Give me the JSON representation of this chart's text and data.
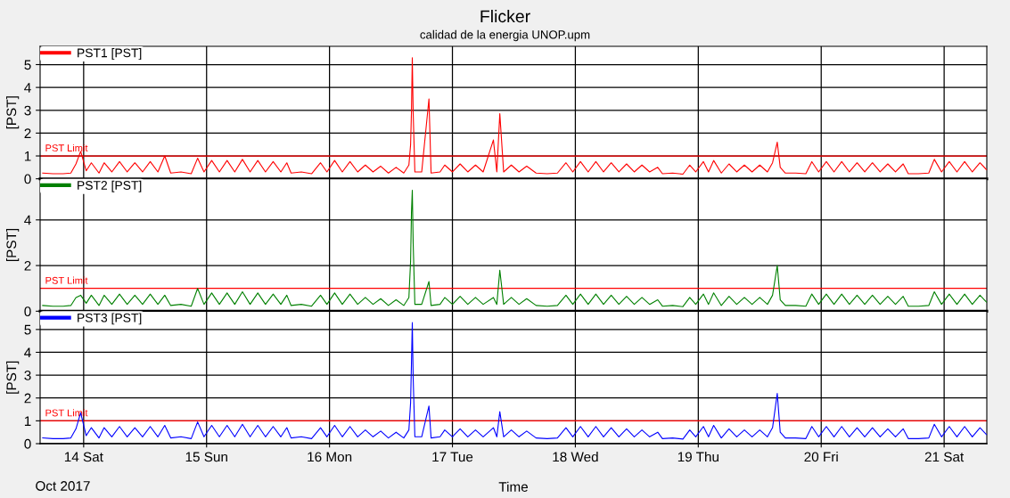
{
  "chart_data": [
    {
      "type": "line",
      "title": "Flicker",
      "subtitle": "calidad de la energia UNOP.upm",
      "ylabel": "[PST]",
      "legend": "top left",
      "grid": true,
      "tick_labels": "y",
      "xlim": [
        "2017-10-13T15:30",
        "2017-10-21T08:20"
      ],
      "xticks": [
        {
          "value": "2017-10-14",
          "label": null
        },
        {
          "value": "2017-10-15",
          "label": null
        },
        {
          "value": "2017-10-16",
          "label": null
        },
        {
          "value": "2017-10-17",
          "label": null
        },
        {
          "value": "2017-10-18",
          "label": null
        },
        {
          "value": "2017-10-19",
          "label": null
        },
        {
          "value": "2017-10-20",
          "label": null
        },
        {
          "value": "2017-10-21",
          "label": null
        }
      ],
      "ylim": [
        0,
        5.8
      ],
      "yticks": [
        0,
        1,
        2,
        3,
        4,
        5
      ],
      "ref_lines": [
        {
          "axis": "y",
          "value": 1,
          "label": "PST Limit",
          "color": "#ff0000"
        }
      ],
      "x": [
        "2017-10-13T16:00",
        "2017-10-13T18:00",
        "2017-10-13T20:00",
        "2017-10-13T21:30",
        "2017-10-13T22:30",
        "2017-10-13T23:25",
        "2017-10-14T00:30",
        "2017-10-14T01:30",
        "2017-10-14T03:00",
        "2017-10-14T04:00",
        "2017-10-14T05:30",
        "2017-10-14T07:00",
        "2017-10-14T08:30",
        "2017-10-14T10:00",
        "2017-10-14T11:30",
        "2017-10-14T13:00",
        "2017-10-14T14:30",
        "2017-10-14T15:50",
        "2017-10-14T17:00",
        "2017-10-14T19:00",
        "2017-10-14T21:00",
        "2017-10-14T22:15",
        "2017-10-14T23:30",
        "2017-10-15T01:00",
        "2017-10-15T02:30",
        "2017-10-15T04:00",
        "2017-10-15T05:30",
        "2017-10-15T07:00",
        "2017-10-15T08:30",
        "2017-10-15T10:00",
        "2017-10-15T11:30",
        "2017-10-15T13:00",
        "2017-10-15T14:30",
        "2017-10-15T15:40",
        "2017-10-15T16:30",
        "2017-10-15T18:30",
        "2017-10-15T20:30",
        "2017-10-15T22:15",
        "2017-10-15T23:30",
        "2017-10-16T01:00",
        "2017-10-16T02:30",
        "2017-10-16T04:00",
        "2017-10-16T05:30",
        "2017-10-16T07:00",
        "2017-10-16T08:30",
        "2017-10-16T10:00",
        "2017-10-16T11:30",
        "2017-10-16T13:00",
        "2017-10-16T14:30",
        "2017-10-16T15:30",
        "2017-10-16T15:50",
        "2017-10-16T16:00",
        "2017-10-16T16:10",
        "2017-10-16T16:20",
        "2017-10-16T16:40",
        "2017-10-16T18:00",
        "2017-10-16T19:25",
        "2017-10-16T19:50",
        "2017-10-16T21:35",
        "2017-10-16T22:30",
        "2017-10-17T00:00",
        "2017-10-17T01:30",
        "2017-10-17T03:00",
        "2017-10-17T04:30",
        "2017-10-17T06:00",
        "2017-10-17T08:00",
        "2017-10-17T08:40",
        "2017-10-17T09:15",
        "2017-10-17T10:00",
        "2017-10-17T11:30",
        "2017-10-17T13:00",
        "2017-10-17T14:30",
        "2017-10-17T16:20",
        "2017-10-17T18:30",
        "2017-10-17T20:30",
        "2017-10-17T22:10",
        "2017-10-17T23:30",
        "2017-10-18T01:00",
        "2017-10-18T02:30",
        "2017-10-18T04:00",
        "2017-10-18T05:30",
        "2017-10-18T07:00",
        "2017-10-18T08:30",
        "2017-10-18T10:00",
        "2017-10-18T11:30",
        "2017-10-18T13:00",
        "2017-10-18T14:30",
        "2017-10-18T16:05",
        "2017-10-18T17:00",
        "2017-10-18T19:00",
        "2017-10-18T21:00",
        "2017-10-18T22:20",
        "2017-10-18T23:30",
        "2017-10-19T01:00",
        "2017-10-19T02:00",
        "2017-10-19T03:00",
        "2017-10-19T04:30",
        "2017-10-19T06:00",
        "2017-10-19T07:30",
        "2017-10-19T09:00",
        "2017-10-19T10:30",
        "2017-10-19T12:00",
        "2017-10-19T13:30",
        "2017-10-19T14:30",
        "2017-10-19T15:25",
        "2017-10-19T16:00",
        "2017-10-19T17:00",
        "2017-10-19T19:00",
        "2017-10-19T21:00",
        "2017-10-19T22:10",
        "2017-10-19T23:30",
        "2017-10-20T01:00",
        "2017-10-20T02:30",
        "2017-10-20T04:00",
        "2017-10-20T05:30",
        "2017-10-20T07:00",
        "2017-10-20T08:30",
        "2017-10-20T10:00",
        "2017-10-20T11:30",
        "2017-10-20T13:00",
        "2017-10-20T14:30",
        "2017-10-20T16:00",
        "2017-10-20T17:00",
        "2017-10-20T19:00",
        "2017-10-20T21:00",
        "2017-10-20T22:05",
        "2017-10-20T23:30",
        "2017-10-21T01:00",
        "2017-10-21T02:30",
        "2017-10-21T04:00",
        "2017-10-21T05:30",
        "2017-10-21T07:00",
        "2017-10-21T08:15"
      ],
      "series": [
        {
          "name": "PST1 [PST]",
          "color": "#ff0000",
          "values": [
            0.25,
            0.22,
            0.22,
            0.25,
            0.65,
            1.2,
            0.35,
            0.7,
            0.25,
            0.7,
            0.3,
            0.75,
            0.3,
            0.7,
            0.3,
            0.75,
            0.3,
            1.0,
            0.25,
            0.3,
            0.22,
            0.9,
            0.3,
            0.8,
            0.3,
            0.8,
            0.3,
            0.85,
            0.3,
            0.8,
            0.3,
            0.75,
            0.3,
            0.7,
            0.25,
            0.3,
            0.22,
            0.7,
            0.3,
            0.8,
            0.3,
            0.75,
            0.3,
            0.6,
            0.3,
            0.55,
            0.25,
            0.5,
            0.25,
            0.6,
            1.5,
            2.9,
            5.3,
            2.9,
            0.3,
            0.3,
            3.5,
            0.25,
            0.3,
            0.6,
            0.3,
            0.65,
            0.3,
            0.6,
            0.3,
            1.7,
            0.3,
            2.85,
            0.3,
            0.6,
            0.3,
            0.55,
            0.25,
            0.22,
            0.25,
            0.7,
            0.3,
            0.75,
            0.3,
            0.75,
            0.3,
            0.7,
            0.3,
            0.65,
            0.3,
            0.6,
            0.3,
            0.5,
            0.22,
            0.25,
            0.2,
            0.6,
            0.3,
            0.75,
            0.3,
            0.8,
            0.25,
            0.65,
            0.3,
            0.6,
            0.3,
            0.6,
            0.3,
            0.7,
            1.6,
            0.5,
            0.25,
            0.25,
            0.22,
            0.75,
            0.3,
            0.75,
            0.3,
            0.75,
            0.3,
            0.7,
            0.3,
            0.7,
            0.3,
            0.65,
            0.3,
            0.65,
            0.22,
            0.22,
            0.25,
            0.85,
            0.3,
            0.75,
            0.3,
            0.75,
            0.3,
            0.7,
            0.4
          ]
        }
      ]
    },
    {
      "type": "line",
      "ylabel": "[PST]",
      "legend": "top left",
      "grid": true,
      "tick_labels": "y",
      "xlim": [
        "2017-10-13T15:30",
        "2017-10-21T08:20"
      ],
      "xticks": [
        {
          "value": "2017-10-14",
          "label": null
        },
        {
          "value": "2017-10-15",
          "label": null
        },
        {
          "value": "2017-10-16",
          "label": null
        },
        {
          "value": "2017-10-17",
          "label": null
        },
        {
          "value": "2017-10-18",
          "label": null
        },
        {
          "value": "2017-10-19",
          "label": null
        },
        {
          "value": "2017-10-20",
          "label": null
        },
        {
          "value": "2017-10-21",
          "label": null
        }
      ],
      "ylim": [
        0,
        5.8
      ],
      "yticks": [
        0,
        2,
        4
      ],
      "ref_lines": [
        {
          "axis": "y",
          "value": 1,
          "label": "PST Limit",
          "color": "#ff0000"
        }
      ],
      "x": [
        "2017-10-13T16:00",
        "2017-10-13T18:00",
        "2017-10-13T20:00",
        "2017-10-13T21:30",
        "2017-10-13T22:30",
        "2017-10-13T23:25",
        "2017-10-14T00:30",
        "2017-10-14T01:30",
        "2017-10-14T03:00",
        "2017-10-14T04:00",
        "2017-10-14T05:30",
        "2017-10-14T07:00",
        "2017-10-14T08:30",
        "2017-10-14T10:00",
        "2017-10-14T11:30",
        "2017-10-14T13:00",
        "2017-10-14T14:30",
        "2017-10-14T15:50",
        "2017-10-14T17:00",
        "2017-10-14T19:00",
        "2017-10-14T21:00",
        "2017-10-14T22:15",
        "2017-10-14T23:30",
        "2017-10-15T01:00",
        "2017-10-15T02:30",
        "2017-10-15T04:00",
        "2017-10-15T05:30",
        "2017-10-15T07:00",
        "2017-10-15T08:30",
        "2017-10-15T10:00",
        "2017-10-15T11:30",
        "2017-10-15T13:00",
        "2017-10-15T14:30",
        "2017-10-15T15:40",
        "2017-10-15T16:30",
        "2017-10-15T18:30",
        "2017-10-15T20:30",
        "2017-10-15T22:15",
        "2017-10-15T23:30",
        "2017-10-16T01:00",
        "2017-10-16T02:30",
        "2017-10-16T04:00",
        "2017-10-16T05:30",
        "2017-10-16T07:00",
        "2017-10-16T08:30",
        "2017-10-16T10:00",
        "2017-10-16T11:30",
        "2017-10-16T13:00",
        "2017-10-16T14:30",
        "2017-10-16T15:30",
        "2017-10-16T15:50",
        "2017-10-16T16:00",
        "2017-10-16T16:10",
        "2017-10-16T16:20",
        "2017-10-16T16:40",
        "2017-10-16T18:00",
        "2017-10-16T19:25",
        "2017-10-16T19:50",
        "2017-10-16T21:35",
        "2017-10-16T22:30",
        "2017-10-17T00:00",
        "2017-10-17T01:30",
        "2017-10-17T03:00",
        "2017-10-17T04:30",
        "2017-10-17T06:00",
        "2017-10-17T08:00",
        "2017-10-17T08:40",
        "2017-10-17T09:15",
        "2017-10-17T10:00",
        "2017-10-17T11:30",
        "2017-10-17T13:00",
        "2017-10-17T14:30",
        "2017-10-17T16:20",
        "2017-10-17T18:30",
        "2017-10-17T20:30",
        "2017-10-17T22:10",
        "2017-10-17T23:30",
        "2017-10-18T01:00",
        "2017-10-18T02:30",
        "2017-10-18T04:00",
        "2017-10-18T05:30",
        "2017-10-18T07:00",
        "2017-10-18T08:30",
        "2017-10-18T10:00",
        "2017-10-18T11:30",
        "2017-10-18T13:00",
        "2017-10-18T14:30",
        "2017-10-18T16:05",
        "2017-10-18T17:00",
        "2017-10-18T19:00",
        "2017-10-18T21:00",
        "2017-10-18T22:20",
        "2017-10-18T23:30",
        "2017-10-19T01:00",
        "2017-10-19T02:00",
        "2017-10-19T03:00",
        "2017-10-19T04:30",
        "2017-10-19T06:00",
        "2017-10-19T07:30",
        "2017-10-19T09:00",
        "2017-10-19T10:30",
        "2017-10-19T12:00",
        "2017-10-19T13:30",
        "2017-10-19T14:30",
        "2017-10-19T15:25",
        "2017-10-19T16:00",
        "2017-10-19T17:00",
        "2017-10-19T19:00",
        "2017-10-19T21:00",
        "2017-10-19T22:10",
        "2017-10-19T23:30",
        "2017-10-20T01:00",
        "2017-10-20T02:30",
        "2017-10-20T04:00",
        "2017-10-20T05:30",
        "2017-10-20T07:00",
        "2017-10-20T08:30",
        "2017-10-20T10:00",
        "2017-10-20T11:30",
        "2017-10-20T13:00",
        "2017-10-20T14:30",
        "2017-10-20T16:00",
        "2017-10-20T17:00",
        "2017-10-20T19:00",
        "2017-10-20T21:00",
        "2017-10-20T22:05",
        "2017-10-20T23:30",
        "2017-10-21T01:00",
        "2017-10-21T02:30",
        "2017-10-21T04:00",
        "2017-10-21T05:30",
        "2017-10-21T07:00",
        "2017-10-21T08:15"
      ],
      "series": [
        {
          "name": "PST2 [PST]",
          "color": "#008000",
          "values": [
            0.25,
            0.22,
            0.22,
            0.25,
            0.6,
            0.7,
            0.35,
            0.7,
            0.25,
            0.7,
            0.3,
            0.75,
            0.3,
            0.7,
            0.3,
            0.75,
            0.3,
            0.7,
            0.25,
            0.3,
            0.22,
            1.0,
            0.3,
            0.8,
            0.3,
            0.8,
            0.3,
            0.85,
            0.3,
            0.8,
            0.3,
            0.75,
            0.3,
            0.7,
            0.25,
            0.3,
            0.22,
            0.7,
            0.3,
            0.8,
            0.3,
            0.75,
            0.3,
            0.6,
            0.3,
            0.55,
            0.25,
            0.5,
            0.25,
            0.6,
            2.2,
            4.3,
            5.3,
            3.0,
            0.3,
            0.3,
            1.3,
            0.25,
            0.3,
            0.6,
            0.3,
            0.65,
            0.3,
            0.6,
            0.3,
            0.6,
            0.3,
            1.8,
            0.3,
            0.6,
            0.3,
            0.55,
            0.25,
            0.22,
            0.25,
            0.7,
            0.3,
            0.75,
            0.3,
            0.75,
            0.3,
            0.7,
            0.3,
            0.65,
            0.3,
            0.6,
            0.3,
            0.5,
            0.22,
            0.25,
            0.2,
            0.6,
            0.3,
            0.75,
            0.3,
            0.8,
            0.25,
            0.65,
            0.3,
            0.6,
            0.3,
            0.6,
            0.3,
            0.7,
            2.0,
            0.5,
            0.25,
            0.25,
            0.22,
            0.75,
            0.3,
            0.75,
            0.3,
            0.75,
            0.3,
            0.7,
            0.3,
            0.7,
            0.3,
            0.65,
            0.3,
            0.65,
            0.22,
            0.22,
            0.25,
            0.85,
            0.3,
            0.75,
            0.3,
            0.75,
            0.3,
            0.7,
            0.4
          ]
        }
      ]
    },
    {
      "type": "line",
      "xlabel": "Time",
      "ylabel": "[PST]",
      "legend": "top left",
      "grid": true,
      "annotations": [
        "Oct 2017"
      ],
      "xlim": [
        "2017-10-13T15:30",
        "2017-10-21T08:20"
      ],
      "xticks": [
        {
          "value": "2017-10-14",
          "label": "14 Sat"
        },
        {
          "value": "2017-10-15",
          "label": "15 Sun"
        },
        {
          "value": "2017-10-16",
          "label": "16 Mon"
        },
        {
          "value": "2017-10-17",
          "label": "17 Tue"
        },
        {
          "value": "2017-10-18",
          "label": "18 Wed"
        },
        {
          "value": "2017-10-19",
          "label": "19 Thu"
        },
        {
          "value": "2017-10-20",
          "label": "20 Fri"
        },
        {
          "value": "2017-10-21",
          "label": "21 Sat"
        }
      ],
      "ylim": [
        0,
        5.8
      ],
      "yticks": [
        0,
        1,
        2,
        3,
        4,
        5
      ],
      "ref_lines": [
        {
          "axis": "y",
          "value": 1,
          "label": "PST Limit",
          "color": "#ff0000"
        }
      ],
      "x": [
        "2017-10-13T16:00",
        "2017-10-13T18:00",
        "2017-10-13T20:00",
        "2017-10-13T21:30",
        "2017-10-13T22:30",
        "2017-10-13T23:25",
        "2017-10-14T00:30",
        "2017-10-14T01:30",
        "2017-10-14T03:00",
        "2017-10-14T04:00",
        "2017-10-14T05:30",
        "2017-10-14T07:00",
        "2017-10-14T08:30",
        "2017-10-14T10:00",
        "2017-10-14T11:30",
        "2017-10-14T13:00",
        "2017-10-14T14:30",
        "2017-10-14T15:50",
        "2017-10-14T17:00",
        "2017-10-14T19:00",
        "2017-10-14T21:00",
        "2017-10-14T22:15",
        "2017-10-14T23:30",
        "2017-10-15T01:00",
        "2017-10-15T02:30",
        "2017-10-15T04:00",
        "2017-10-15T05:30",
        "2017-10-15T07:00",
        "2017-10-15T08:30",
        "2017-10-15T10:00",
        "2017-10-15T11:30",
        "2017-10-15T13:00",
        "2017-10-15T14:30",
        "2017-10-15T15:40",
        "2017-10-15T16:30",
        "2017-10-15T18:30",
        "2017-10-15T20:30",
        "2017-10-15T22:15",
        "2017-10-15T23:30",
        "2017-10-16T01:00",
        "2017-10-16T02:30",
        "2017-10-16T04:00",
        "2017-10-16T05:30",
        "2017-10-16T07:00",
        "2017-10-16T08:30",
        "2017-10-16T10:00",
        "2017-10-16T11:30",
        "2017-10-16T13:00",
        "2017-10-16T14:30",
        "2017-10-16T15:30",
        "2017-10-16T15:50",
        "2017-10-16T16:00",
        "2017-10-16T16:10",
        "2017-10-16T16:20",
        "2017-10-16T16:40",
        "2017-10-16T18:00",
        "2017-10-16T19:25",
        "2017-10-16T19:50",
        "2017-10-16T21:35",
        "2017-10-16T22:30",
        "2017-10-17T00:00",
        "2017-10-17T01:30",
        "2017-10-17T03:00",
        "2017-10-17T04:30",
        "2017-10-17T06:00",
        "2017-10-17T08:00",
        "2017-10-17T08:40",
        "2017-10-17T09:15",
        "2017-10-17T10:00",
        "2017-10-17T11:30",
        "2017-10-17T13:00",
        "2017-10-17T14:30",
        "2017-10-17T16:20",
        "2017-10-17T18:30",
        "2017-10-17T20:30",
        "2017-10-17T22:10",
        "2017-10-17T23:30",
        "2017-10-18T01:00",
        "2017-10-18T02:30",
        "2017-10-18T04:00",
        "2017-10-18T05:30",
        "2017-10-18T07:00",
        "2017-10-18T08:30",
        "2017-10-18T10:00",
        "2017-10-18T11:30",
        "2017-10-18T13:00",
        "2017-10-18T14:30",
        "2017-10-18T16:05",
        "2017-10-18T17:00",
        "2017-10-18T19:00",
        "2017-10-18T21:00",
        "2017-10-18T22:20",
        "2017-10-18T23:30",
        "2017-10-19T01:00",
        "2017-10-19T02:00",
        "2017-10-19T03:00",
        "2017-10-19T04:30",
        "2017-10-19T06:00",
        "2017-10-19T07:30",
        "2017-10-19T09:00",
        "2017-10-19T10:30",
        "2017-10-19T12:00",
        "2017-10-19T13:30",
        "2017-10-19T14:30",
        "2017-10-19T15:25",
        "2017-10-19T16:00",
        "2017-10-19T17:00",
        "2017-10-19T19:00",
        "2017-10-19T21:00",
        "2017-10-19T22:10",
        "2017-10-19T23:30",
        "2017-10-20T01:00",
        "2017-10-20T02:30",
        "2017-10-20T04:00",
        "2017-10-20T05:30",
        "2017-10-20T07:00",
        "2017-10-20T08:30",
        "2017-10-20T10:00",
        "2017-10-20T11:30",
        "2017-10-20T13:00",
        "2017-10-20T14:30",
        "2017-10-20T16:00",
        "2017-10-20T17:00",
        "2017-10-20T19:00",
        "2017-10-20T21:00",
        "2017-10-20T22:05",
        "2017-10-20T23:30",
        "2017-10-21T01:00",
        "2017-10-21T02:30",
        "2017-10-21T04:00",
        "2017-10-21T05:30",
        "2017-10-21T07:00",
        "2017-10-21T08:15"
      ],
      "series": [
        {
          "name": "PST3 [PST]",
          "color": "#0000ff",
          "values": [
            0.25,
            0.22,
            0.22,
            0.25,
            0.65,
            1.35,
            0.35,
            0.7,
            0.25,
            0.7,
            0.3,
            0.75,
            0.3,
            0.7,
            0.3,
            0.75,
            0.3,
            0.8,
            0.25,
            0.3,
            0.22,
            0.95,
            0.3,
            0.8,
            0.3,
            0.8,
            0.3,
            0.85,
            0.3,
            0.8,
            0.3,
            0.75,
            0.3,
            0.7,
            0.25,
            0.3,
            0.22,
            0.7,
            0.3,
            0.8,
            0.3,
            0.75,
            0.3,
            0.6,
            0.3,
            0.55,
            0.25,
            0.5,
            0.25,
            0.6,
            1.8,
            3.5,
            5.3,
            2.9,
            0.3,
            0.3,
            1.65,
            0.25,
            0.3,
            0.6,
            0.3,
            0.65,
            0.3,
            0.6,
            0.3,
            0.7,
            0.3,
            1.4,
            0.3,
            0.6,
            0.3,
            0.55,
            0.25,
            0.22,
            0.25,
            0.7,
            0.3,
            0.75,
            0.3,
            0.75,
            0.3,
            0.7,
            0.3,
            0.65,
            0.3,
            0.6,
            0.3,
            0.5,
            0.22,
            0.25,
            0.2,
            0.6,
            0.3,
            0.75,
            0.3,
            0.8,
            0.25,
            0.65,
            0.3,
            0.6,
            0.3,
            0.6,
            0.3,
            0.7,
            2.2,
            0.5,
            0.25,
            0.25,
            0.22,
            0.75,
            0.3,
            0.75,
            0.3,
            0.75,
            0.3,
            0.7,
            0.3,
            0.7,
            0.3,
            0.65,
            0.3,
            0.65,
            0.22,
            0.22,
            0.25,
            0.85,
            0.3,
            0.75,
            0.3,
            0.75,
            0.3,
            0.7,
            0.4
          ]
        }
      ]
    }
  ]
}
